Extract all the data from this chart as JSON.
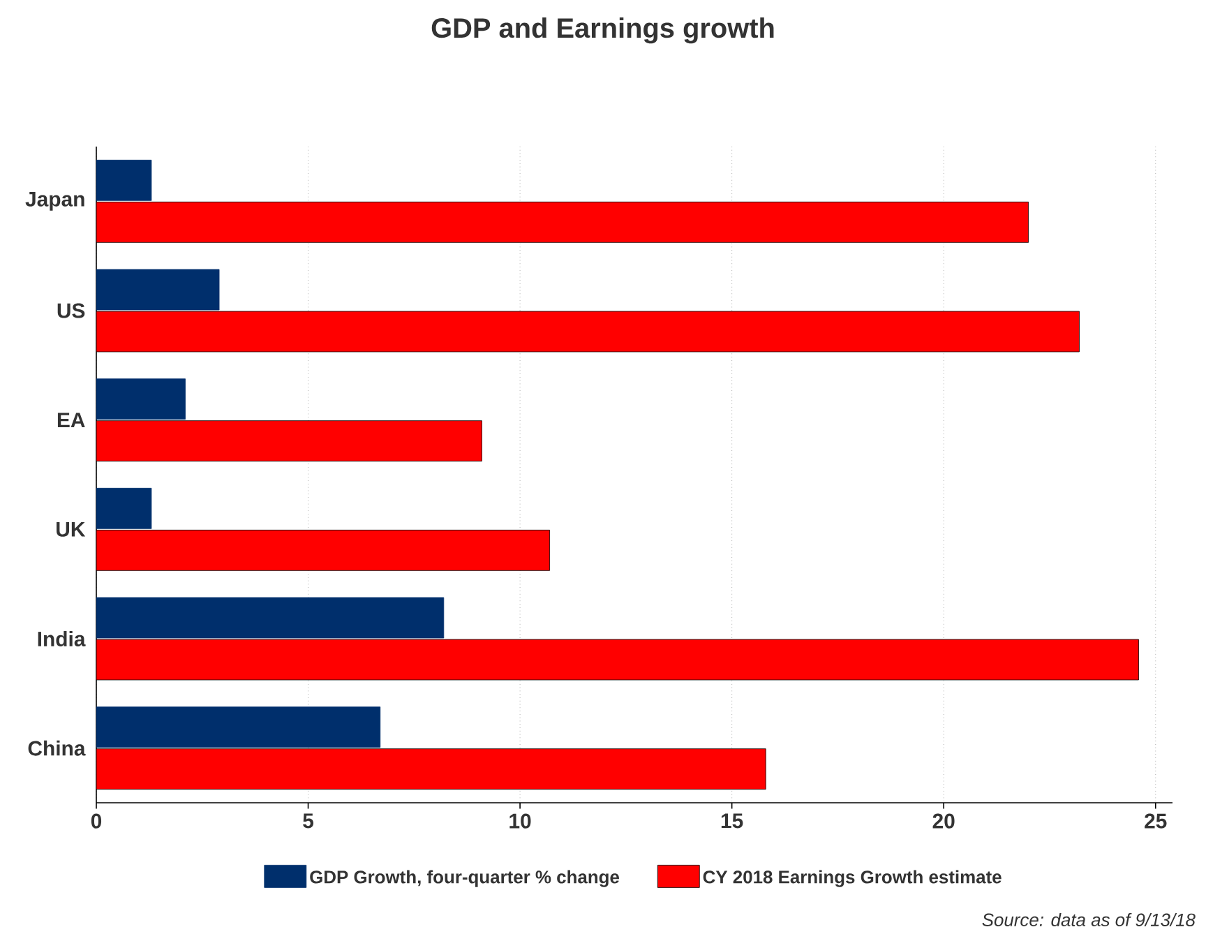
{
  "chart_data": {
    "type": "bar",
    "orientation": "horizontal",
    "title": "GDP and Earnings growth",
    "categories": [
      "Japan",
      "US",
      "EA",
      "UK",
      "India",
      "China"
    ],
    "series": [
      {
        "name": "GDP Growth, four-quarter % change",
        "color": "#002f6c",
        "values": [
          1.3,
          2.9,
          2.1,
          1.3,
          8.2,
          6.7
        ]
      },
      {
        "name": "CY 2018 Earnings Growth estimate",
        "color": "#ff0000",
        "values": [
          22.0,
          23.2,
          9.1,
          10.7,
          24.6,
          15.8
        ]
      }
    ],
    "xlim": [
      0,
      25.4
    ],
    "xticks": [
      0,
      5,
      10,
      15,
      20,
      25
    ],
    "grid": "x",
    "legend": "bottom",
    "annotations": [
      "Source: data as of 9/13/18"
    ]
  }
}
